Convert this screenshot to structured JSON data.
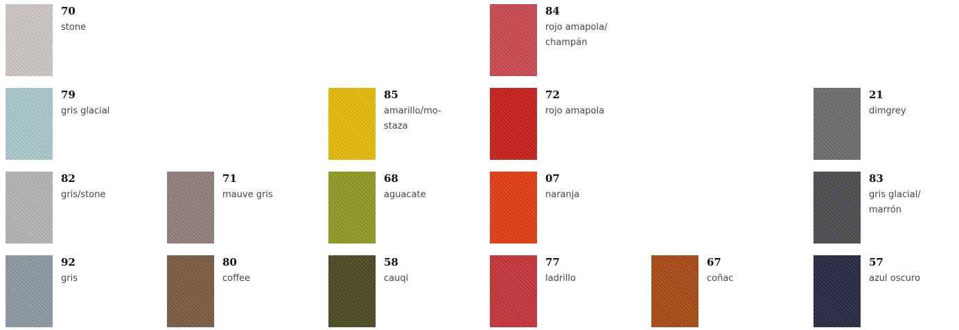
{
  "swatches": [
    {
      "code": "70",
      "name": [
        "stone"
      ],
      "color": "#cbc6c1"
    },
    {
      "code": "84",
      "name": [
        "rojo amapola/",
        "champán"
      ],
      "color": "#c84a4f"
    },
    {
      "code": "79",
      "name": [
        "gris glacial"
      ],
      "color": "#a9c7cb"
    },
    {
      "code": "85",
      "name": [
        "amarillo/mo-",
        "staza"
      ],
      "color": "#e2ba0c"
    },
    {
      "code": "72",
      "name": [
        "rojo amapola"
      ],
      "color": "#c6211c"
    },
    {
      "code": "21",
      "name": [
        "dimgrey"
      ],
      "color": "#6c6c6c"
    },
    {
      "code": "82",
      "name": [
        "gris/stone"
      ],
      "color": "#b3b3b1"
    },
    {
      "code": "71",
      "name": [
        "mauve gris"
      ],
      "color": "#8f7f7c"
    },
    {
      "code": "68",
      "name": [
        "aguacate"
      ],
      "color": "#8e9a24"
    },
    {
      "code": "07",
      "name": [
        "naranja"
      ],
      "color": "#df3e13"
    },
    {
      "code": "83",
      "name": [
        "gris glacial/",
        "marrón"
      ],
      "color": "#4b4b4e"
    },
    {
      "code": "92",
      "name": [
        "gris"
      ],
      "color": "#8c97a3"
    },
    {
      "code": "80",
      "name": [
        "coffee"
      ],
      "color": "#7a5b43"
    },
    {
      "code": "58",
      "name": [
        "cauqi"
      ],
      "color": "#4b4a23"
    },
    {
      "code": "77",
      "name": [
        "ladrillo"
      ],
      "color": "#c3343a"
    },
    {
      "code": "67",
      "name": [
        "coñac"
      ],
      "color": "#a64a15"
    },
    {
      "code": "57",
      "name": [
        "azul oscuro"
      ],
      "color": "#262941"
    }
  ]
}
